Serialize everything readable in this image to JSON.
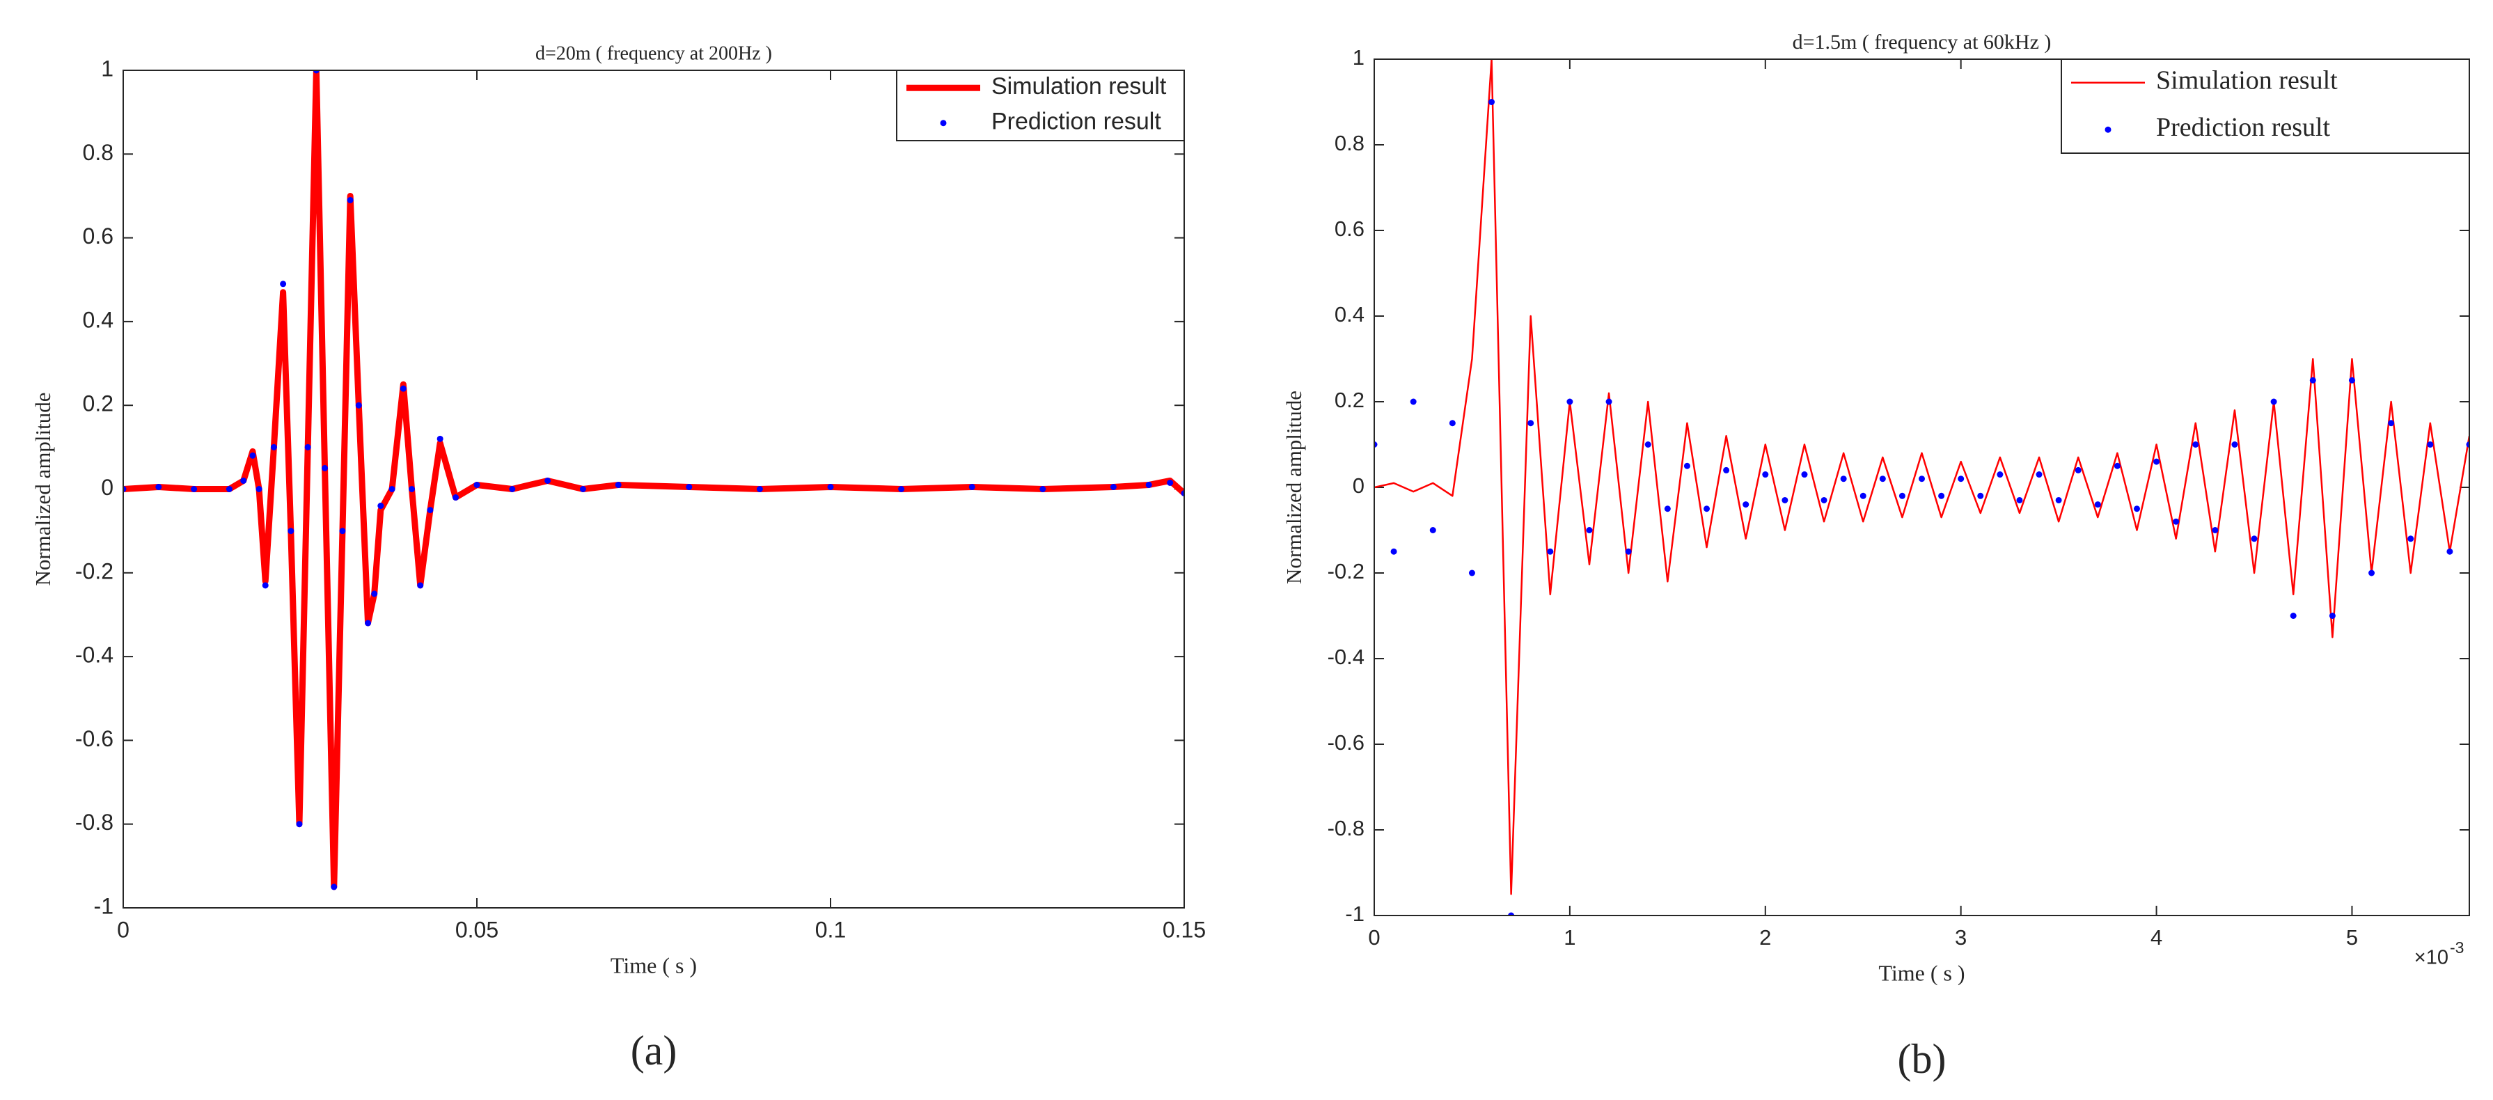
{
  "chart_data": [
    {
      "type": "line",
      "title": "d=20m ( frequency at 200Hz )",
      "xlabel": "Time ( s )",
      "ylabel": "Normalized amplitude",
      "panel_label": "(a)",
      "x": [
        0,
        0.005,
        0.01,
        0.015,
        0.017,
        0.0183,
        0.0192,
        0.0201,
        0.0213,
        0.0226,
        0.0237,
        0.0249,
        0.0261,
        0.0273,
        0.0285,
        0.0298,
        0.031,
        0.0321,
        0.0333,
        0.0346,
        0.0355,
        0.0364,
        0.038,
        0.0396,
        0.0408,
        0.042,
        0.0434,
        0.0448,
        0.047,
        0.05,
        0.055,
        0.06,
        0.065,
        0.07,
        0.08,
        0.09,
        0.1,
        0.11,
        0.12,
        0.13,
        0.14,
        0.145,
        0.148,
        0.15
      ],
      "series": [
        {
          "name": "Simulation result",
          "style": "line",
          "color": "#ff0000",
          "values": [
            0,
            0.005,
            0,
            0,
            0.02,
            0.09,
            0,
            -0.22,
            0.1,
            0.47,
            -0.1,
            -0.8,
            0.1,
            1,
            0.05,
            -0.95,
            -0.1,
            0.7,
            0.2,
            -0.32,
            -0.25,
            -0.05,
            0,
            0.25,
            0,
            -0.23,
            -0.05,
            0.11,
            -0.02,
            0.01,
            0,
            0.02,
            0,
            0.01,
            0.005,
            0,
            0.005,
            0,
            0.005,
            0,
            0.005,
            0.01,
            0.02,
            -0.01
          ]
        },
        {
          "name": "Prediction result",
          "style": "markers",
          "color": "#0000ff",
          "values": [
            0,
            0.005,
            0,
            0,
            0.02,
            0.08,
            0,
            -0.23,
            0.1,
            0.49,
            -0.1,
            -0.8,
            0.1,
            1,
            0.05,
            -0.95,
            -0.1,
            0.69,
            0.2,
            -0.32,
            -0.25,
            -0.04,
            0,
            0.24,
            0,
            -0.23,
            -0.05,
            0.12,
            -0.02,
            0.01,
            0,
            0.02,
            0,
            0.01,
            0.005,
            0,
            0.005,
            0,
            0.005,
            0,
            0.005,
            0.01,
            0.015,
            -0.01
          ]
        }
      ],
      "xlim": [
        0,
        0.15
      ],
      "ylim": [
        -1,
        1
      ],
      "xticks": [
        0,
        0.05,
        0.1,
        0.15
      ],
      "yticks": [
        -1,
        -0.8,
        -0.6,
        -0.4,
        -0.2,
        0,
        0.2,
        0.4,
        0.6,
        0.8,
        1
      ],
      "legend": "upper right"
    },
    {
      "type": "line",
      "title": "d=1.5m ( frequency at 60kHz )",
      "xlabel": "Time ( s )",
      "ylabel": "Normalized amplitude",
      "panel_label": "(b)",
      "x_multiplier": {
        "base": "×10",
        "exponent": "-3"
      },
      "x": [
        0,
        0.0001,
        0.0002,
        0.0003,
        0.0004,
        0.0005,
        0.0006,
        0.0007,
        0.0008,
        0.0009,
        0.001,
        0.0011,
        0.0012,
        0.0013,
        0.0014,
        0.0015,
        0.0016,
        0.0017,
        0.0018,
        0.0019,
        0.002,
        0.0021,
        0.0022,
        0.0023,
        0.0024,
        0.0025,
        0.0026,
        0.0027,
        0.0028,
        0.0029,
        0.003,
        0.0031,
        0.0032,
        0.0033,
        0.0034,
        0.0035,
        0.0036,
        0.0037,
        0.0038,
        0.0039,
        0.004,
        0.0041,
        0.0042,
        0.0043,
        0.0044,
        0.0045,
        0.0046,
        0.0047,
        0.0048,
        0.0049,
        0.005,
        0.0051,
        0.0052,
        0.0053,
        0.0054,
        0.0055,
        0.0056
      ],
      "series": [
        {
          "name": "Simulation result",
          "style": "line",
          "color": "#ff0000",
          "values": [
            0,
            0.01,
            -0.01,
            0.01,
            -0.02,
            0.3,
            1,
            -0.95,
            0.4,
            -0.25,
            0.2,
            -0.18,
            0.22,
            -0.2,
            0.2,
            -0.22,
            0.15,
            -0.14,
            0.12,
            -0.12,
            0.1,
            -0.1,
            0.1,
            -0.08,
            0.08,
            -0.08,
            0.07,
            -0.07,
            0.08,
            -0.07,
            0.06,
            -0.06,
            0.07,
            -0.06,
            0.07,
            -0.08,
            0.07,
            -0.07,
            0.08,
            -0.1,
            0.1,
            -0.12,
            0.15,
            -0.15,
            0.18,
            -0.2,
            0.2,
            -0.25,
            0.3,
            -0.35,
            0.3,
            -0.2,
            0.2,
            -0.2,
            0.15,
            -0.15,
            0.12
          ]
        },
        {
          "name": "Prediction result",
          "style": "markers",
          "color": "#0000ff",
          "values": [
            0.1,
            -0.15,
            0.2,
            -0.1,
            0.15,
            -0.2,
            0.9,
            -1,
            0.15,
            -0.15,
            0.2,
            -0.1,
            0.2,
            -0.15,
            0.1,
            -0.05,
            0.05,
            -0.05,
            0.04,
            -0.04,
            0.03,
            -0.03,
            0.03,
            -0.03,
            0.02,
            -0.02,
            0.02,
            -0.02,
            0.02,
            -0.02,
            0.02,
            -0.02,
            0.03,
            -0.03,
            0.03,
            -0.03,
            0.04,
            -0.04,
            0.05,
            -0.05,
            0.06,
            -0.08,
            0.1,
            -0.1,
            0.1,
            -0.12,
            0.2,
            -0.3,
            0.25,
            -0.3,
            0.25,
            -0.2,
            0.15,
            -0.12,
            0.1,
            -0.15,
            0.1
          ]
        }
      ],
      "xlim": [
        0,
        0.0056
      ],
      "ylim": [
        -1,
        1
      ],
      "xticks": [
        0,
        {
          "value": 0.001,
          "label": "1"
        },
        {
          "value": 0.002,
          "label": "2"
        },
        {
          "value": 0.003,
          "label": "3"
        },
        {
          "value": 0.004,
          "label": "4"
        },
        {
          "value": 0.005,
          "label": "5"
        }
      ],
      "yticks": [
        -1,
        -0.8,
        -0.6,
        -0.4,
        -0.2,
        0,
        0.2,
        0.4,
        0.6,
        0.8,
        1
      ],
      "legend": "upper right"
    }
  ]
}
